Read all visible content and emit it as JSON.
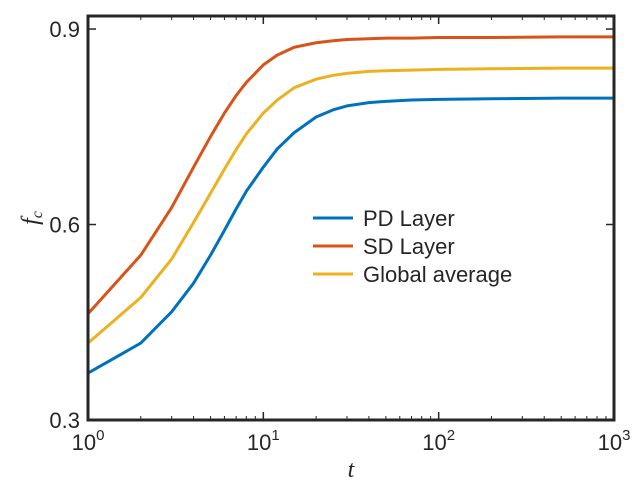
{
  "chart_data": {
    "type": "line",
    "title": "",
    "xlabel": "t",
    "ylabel": "f",
    "ylabel_subscript": "c",
    "xscale": "log",
    "xlim": [
      1,
      1000
    ],
    "ylim": [
      0.3,
      0.92
    ],
    "yticks": [
      0.3,
      0.6,
      0.9
    ],
    "ytick_labels": [
      "0.3",
      "0.6",
      "0.9"
    ],
    "xticks": [
      1,
      10,
      100,
      1000
    ],
    "xtick_labels": [
      {
        "base": "10",
        "exp": "0"
      },
      {
        "base": "10",
        "exp": "1"
      },
      {
        "base": "10",
        "exp": "2"
      },
      {
        "base": "10",
        "exp": "3"
      }
    ],
    "grid": false,
    "legend_position": "center-right",
    "x": [
      1,
      2,
      3,
      4,
      5,
      6,
      7,
      8,
      10,
      12,
      15,
      20,
      25,
      30,
      40,
      50,
      70,
      100,
      200,
      500,
      1000
    ],
    "series": [
      {
        "name": "PD Layer",
        "color": "#0072BD",
        "values": [
          0.372,
          0.418,
          0.466,
          0.51,
          0.553,
          0.591,
          0.624,
          0.651,
          0.688,
          0.716,
          0.741,
          0.765,
          0.776,
          0.782,
          0.787,
          0.789,
          0.791,
          0.792,
          0.793,
          0.794,
          0.794
        ]
      },
      {
        "name": "SD Layer",
        "color": "#D95319",
        "values": [
          0.463,
          0.553,
          0.626,
          0.688,
          0.735,
          0.771,
          0.798,
          0.818,
          0.845,
          0.86,
          0.872,
          0.879,
          0.882,
          0.884,
          0.885,
          0.886,
          0.886,
          0.887,
          0.887,
          0.888,
          0.888
        ]
      },
      {
        "name": "Global average",
        "color": "#EDB120",
        "values": [
          0.418,
          0.488,
          0.547,
          0.603,
          0.648,
          0.685,
          0.715,
          0.739,
          0.771,
          0.791,
          0.81,
          0.823,
          0.829,
          0.832,
          0.835,
          0.836,
          0.837,
          0.838,
          0.839,
          0.84,
          0.84
        ]
      }
    ]
  }
}
